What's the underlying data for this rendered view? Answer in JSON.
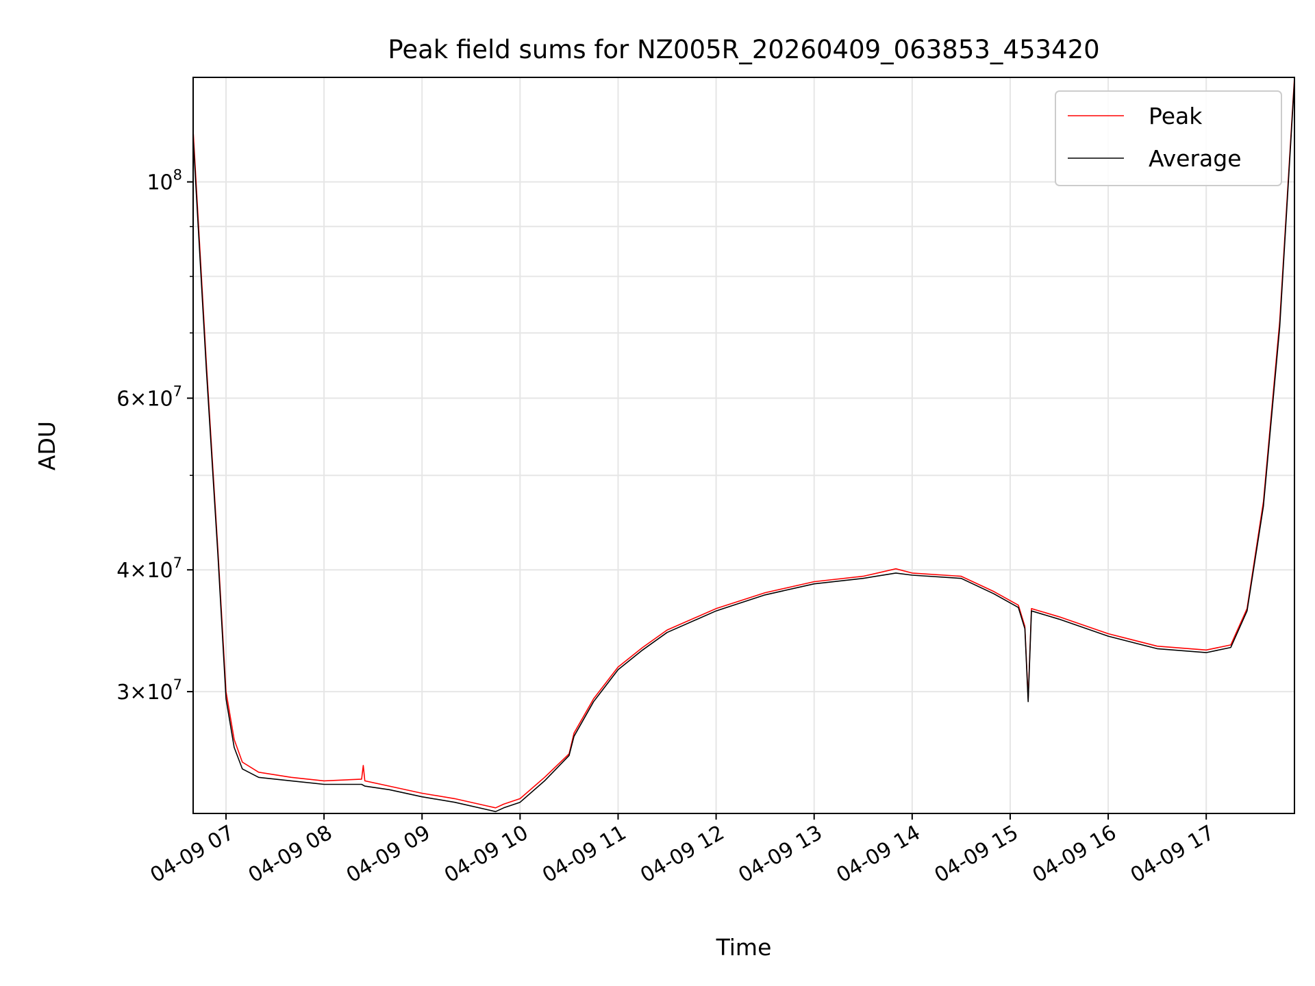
{
  "chart_data": {
    "type": "line",
    "title": "Peak field sums for NZ005R_20260409_063853_453420",
    "xlabel": "Time",
    "ylabel": "ADU",
    "y_scale": "log",
    "grid": true,
    "legend_position": "top-right",
    "xlim": [
      "04-09 06:39:53",
      "04-09 17:54:00"
    ],
    "ylim": [
      22500000,
      128000000
    ],
    "x_ticks": [
      "04-09 07",
      "04-09 08",
      "04-09 09",
      "04-09 10",
      "04-09 11",
      "04-09 12",
      "04-09 13",
      "04-09 14",
      "04-09 15",
      "04-09 16",
      "04-09 17"
    ],
    "y_ticks": [
      {
        "value": 30000000,
        "mantissa": "3",
        "exp": "7"
      },
      {
        "value": 40000000,
        "mantissa": "4",
        "exp": "7"
      },
      {
        "value": 60000000,
        "mantissa": "6",
        "exp": "7"
      },
      {
        "value": 100000000,
        "mantissa": "",
        "exp": "8"
      }
    ],
    "series": [
      {
        "name": "Peak",
        "color": "#ff0000",
        "points": [
          [
            "04-09 06:40",
            112000000
          ],
          [
            "04-09 06:48",
            65000000
          ],
          [
            "04-09 06:55",
            42000000
          ],
          [
            "04-09 07:00",
            30000000
          ],
          [
            "04-09 07:05",
            26800000
          ],
          [
            "04-09 07:10",
            25400000
          ],
          [
            "04-09 07:20",
            24800000
          ],
          [
            "04-09 07:40",
            24500000
          ],
          [
            "04-09 08:00",
            24300000
          ],
          [
            "04-09 08:23",
            24400000
          ],
          [
            "04-09 08:24",
            25200000
          ],
          [
            "04-09 08:25",
            24300000
          ],
          [
            "04-09 08:40",
            24000000
          ],
          [
            "04-09 09:00",
            23600000
          ],
          [
            "04-09 09:20",
            23300000
          ],
          [
            "04-09 09:40",
            22900000
          ],
          [
            "04-09 09:45",
            22800000
          ],
          [
            "04-09 09:50",
            23000000
          ],
          [
            "04-09 10:00",
            23300000
          ],
          [
            "04-09 10:15",
            24500000
          ],
          [
            "04-09 10:30",
            25900000
          ],
          [
            "04-09 10:33",
            27200000
          ],
          [
            "04-09 10:45",
            29500000
          ],
          [
            "04-09 11:00",
            31800000
          ],
          [
            "04-09 11:15",
            33300000
          ],
          [
            "04-09 11:30",
            34700000
          ],
          [
            "04-09 12:00",
            36500000
          ],
          [
            "04-09 12:30",
            37900000
          ],
          [
            "04-09 13:00",
            38900000
          ],
          [
            "04-09 13:30",
            39400000
          ],
          [
            "04-09 13:50",
            40100000
          ],
          [
            "04-09 14:00",
            39700000
          ],
          [
            "04-09 14:30",
            39400000
          ],
          [
            "04-09 14:50",
            38000000
          ],
          [
            "04-09 15:05",
            36800000
          ],
          [
            "04-09 15:09",
            35000000
          ],
          [
            "04-09 15:11",
            29500000
          ],
          [
            "04-09 15:13",
            36500000
          ],
          [
            "04-09 15:30",
            35800000
          ],
          [
            "04-09 16:00",
            34400000
          ],
          [
            "04-09 16:30",
            33400000
          ],
          [
            "04-09 17:00",
            33100000
          ],
          [
            "04-09 17:15",
            33500000
          ],
          [
            "04-09 17:25",
            36500000
          ],
          [
            "04-09 17:35",
            47000000
          ],
          [
            "04-09 17:45",
            72000000
          ],
          [
            "04-09 17:54",
            128000000
          ]
        ]
      },
      {
        "name": "Average",
        "color": "#000000",
        "points": [
          [
            "04-09 06:40",
            110000000
          ],
          [
            "04-09 06:48",
            64000000
          ],
          [
            "04-09 06:55",
            41500000
          ],
          [
            "04-09 07:00",
            29500000
          ],
          [
            "04-09 07:05",
            26300000
          ],
          [
            "04-09 07:10",
            25000000
          ],
          [
            "04-09 07:20",
            24500000
          ],
          [
            "04-09 07:40",
            24300000
          ],
          [
            "04-09 08:00",
            24100000
          ],
          [
            "04-09 08:23",
            24100000
          ],
          [
            "04-09 08:25",
            24000000
          ],
          [
            "04-09 08:40",
            23800000
          ],
          [
            "04-09 09:00",
            23400000
          ],
          [
            "04-09 09:20",
            23100000
          ],
          [
            "04-09 09:40",
            22700000
          ],
          [
            "04-09 09:45",
            22600000
          ],
          [
            "04-09 09:50",
            22800000
          ],
          [
            "04-09 10:00",
            23100000
          ],
          [
            "04-09 10:15",
            24300000
          ],
          [
            "04-09 10:30",
            25800000
          ],
          [
            "04-09 10:33",
            27000000
          ],
          [
            "04-09 10:45",
            29300000
          ],
          [
            "04-09 11:00",
            31600000
          ],
          [
            "04-09 11:15",
            33100000
          ],
          [
            "04-09 11:30",
            34500000
          ],
          [
            "04-09 12:00",
            36300000
          ],
          [
            "04-09 12:30",
            37700000
          ],
          [
            "04-09 13:00",
            38700000
          ],
          [
            "04-09 13:30",
            39200000
          ],
          [
            "04-09 13:50",
            39700000
          ],
          [
            "04-09 14:00",
            39500000
          ],
          [
            "04-09 14:30",
            39200000
          ],
          [
            "04-09 14:50",
            37800000
          ],
          [
            "04-09 15:05",
            36600000
          ],
          [
            "04-09 15:09",
            34800000
          ],
          [
            "04-09 15:11",
            29300000
          ],
          [
            "04-09 15:13",
            36300000
          ],
          [
            "04-09 15:30",
            35600000
          ],
          [
            "04-09 16:00",
            34200000
          ],
          [
            "04-09 16:30",
            33200000
          ],
          [
            "04-09 17:00",
            32900000
          ],
          [
            "04-09 17:15",
            33300000
          ],
          [
            "04-09 17:25",
            36300000
          ],
          [
            "04-09 17:35",
            46500000
          ],
          [
            "04-09 17:45",
            71000000
          ],
          [
            "04-09 17:54",
            127000000
          ]
        ]
      }
    ]
  }
}
